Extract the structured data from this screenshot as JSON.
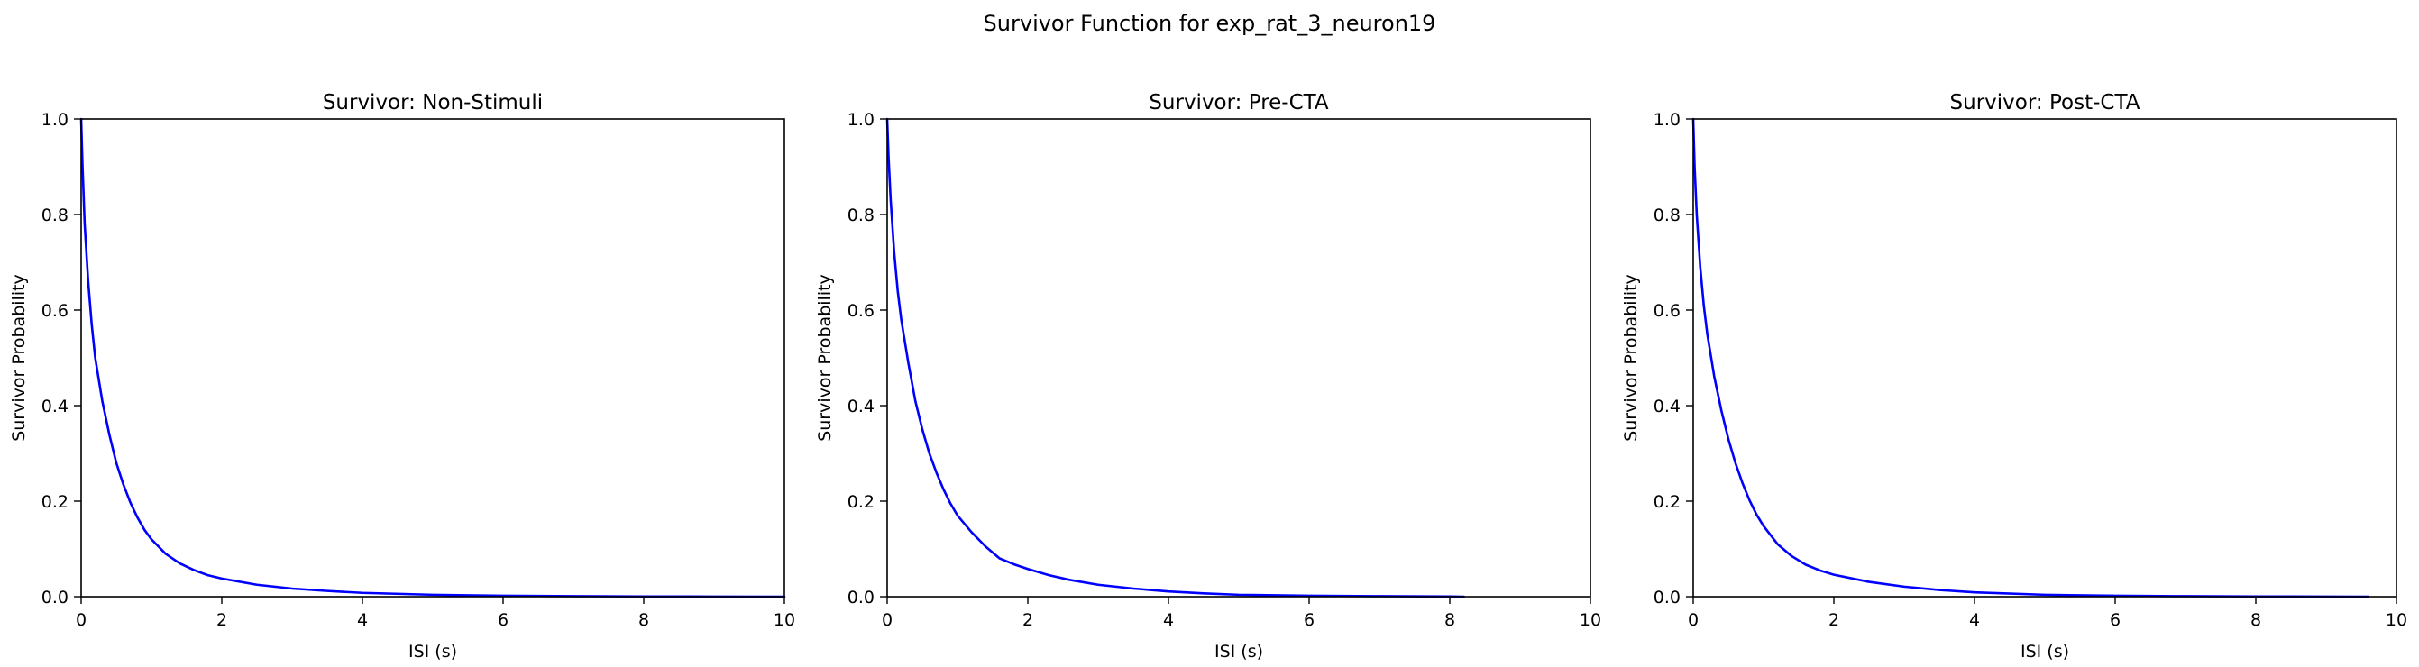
{
  "figure": {
    "suptitle": "Survivor Function for exp_rat_3_neuron19"
  },
  "style": {
    "line_color": "#0000ff",
    "axis_color": "#000000",
    "background": "#ffffff"
  },
  "chart_data": [
    {
      "type": "line",
      "title": "Survivor: Non-Stimuli",
      "xlabel": "ISI (s)",
      "ylabel": "Survivor Probability",
      "xlim": [
        0,
        10
      ],
      "ylim": [
        0,
        1
      ],
      "xticks": [
        0,
        2,
        4,
        6,
        8,
        10
      ],
      "yticks": [
        0.0,
        0.2,
        0.4,
        0.6,
        0.8,
        1.0
      ],
      "xtick_labels": [
        "0",
        "2",
        "4",
        "6",
        "8",
        "10"
      ],
      "ytick_labels": [
        "0.0",
        "0.2",
        "0.4",
        "0.6",
        "0.8",
        "1.0"
      ],
      "grid": false,
      "series": [
        {
          "color": "#0000ff",
          "x": [
            0,
            0.02,
            0.05,
            0.1,
            0.15,
            0.2,
            0.3,
            0.4,
            0.5,
            0.6,
            0.7,
            0.8,
            0.9,
            1.0,
            1.2,
            1.4,
            1.6,
            1.8,
            2.0,
            2.5,
            3.0,
            3.5,
            4.0,
            5.0,
            6.0,
            7.0,
            8.0,
            9.0,
            10.0
          ],
          "y": [
            1.0,
            0.9,
            0.78,
            0.66,
            0.57,
            0.5,
            0.41,
            0.34,
            0.28,
            0.235,
            0.197,
            0.166,
            0.14,
            0.12,
            0.09,
            0.07,
            0.056,
            0.045,
            0.038,
            0.025,
            0.017,
            0.012,
            0.008,
            0.004,
            0.002,
            0.001,
            0.0005,
            0.0002,
            0.0
          ]
        }
      ]
    },
    {
      "type": "line",
      "title": "Survivor: Pre-CTA",
      "xlabel": "ISI (s)",
      "ylabel": "Survivor Probability",
      "xlim": [
        0,
        10
      ],
      "ylim": [
        0,
        1
      ],
      "xticks": [
        0,
        2,
        4,
        6,
        8,
        10
      ],
      "yticks": [
        0.0,
        0.2,
        0.4,
        0.6,
        0.8,
        1.0
      ],
      "xtick_labels": [
        "0",
        "2",
        "4",
        "6",
        "8",
        "10"
      ],
      "ytick_labels": [
        "0.0",
        "0.2",
        "0.4",
        "0.6",
        "0.8",
        "1.0"
      ],
      "grid": false,
      "series": [
        {
          "color": "#0000ff",
          "x": [
            0,
            0.02,
            0.05,
            0.1,
            0.15,
            0.2,
            0.3,
            0.4,
            0.5,
            0.6,
            0.7,
            0.8,
            0.9,
            1.0,
            1.2,
            1.4,
            1.6,
            1.8,
            2.0,
            2.3,
            2.6,
            3.0,
            3.5,
            4.0,
            4.5,
            5.0,
            6.0,
            7.0,
            8.0,
            8.2
          ],
          "y": [
            1.0,
            0.92,
            0.83,
            0.72,
            0.64,
            0.58,
            0.49,
            0.41,
            0.35,
            0.3,
            0.26,
            0.225,
            0.195,
            0.17,
            0.135,
            0.105,
            0.08,
            0.068,
            0.058,
            0.045,
            0.035,
            0.025,
            0.017,
            0.011,
            0.007,
            0.004,
            0.002,
            0.001,
            0.0003,
            0.0
          ]
        }
      ]
    },
    {
      "type": "line",
      "title": "Survivor: Post-CTA",
      "xlabel": "ISI (s)",
      "ylabel": "Survivor Probability",
      "xlim": [
        0,
        10
      ],
      "ylim": [
        0,
        1
      ],
      "xticks": [
        0,
        2,
        4,
        6,
        8,
        10
      ],
      "yticks": [
        0.0,
        0.2,
        0.4,
        0.6,
        0.8,
        1.0
      ],
      "xtick_labels": [
        "0",
        "2",
        "4",
        "6",
        "8",
        "10"
      ],
      "ytick_labels": [
        "0.0",
        "0.2",
        "0.4",
        "0.6",
        "0.8",
        "1.0"
      ],
      "grid": false,
      "series": [
        {
          "color": "#0000ff",
          "x": [
            0,
            0.02,
            0.05,
            0.1,
            0.15,
            0.2,
            0.3,
            0.4,
            0.5,
            0.6,
            0.7,
            0.8,
            0.9,
            1.0,
            1.2,
            1.4,
            1.6,
            1.8,
            2.0,
            2.5,
            3.0,
            3.5,
            4.0,
            5.0,
            6.0,
            7.0,
            8.0,
            9.0,
            9.6
          ],
          "y": [
            1.0,
            0.9,
            0.8,
            0.69,
            0.61,
            0.55,
            0.46,
            0.39,
            0.33,
            0.28,
            0.238,
            0.202,
            0.172,
            0.148,
            0.11,
            0.085,
            0.067,
            0.055,
            0.046,
            0.031,
            0.021,
            0.014,
            0.009,
            0.004,
            0.002,
            0.001,
            0.0005,
            0.0002,
            0.0
          ]
        }
      ]
    }
  ]
}
